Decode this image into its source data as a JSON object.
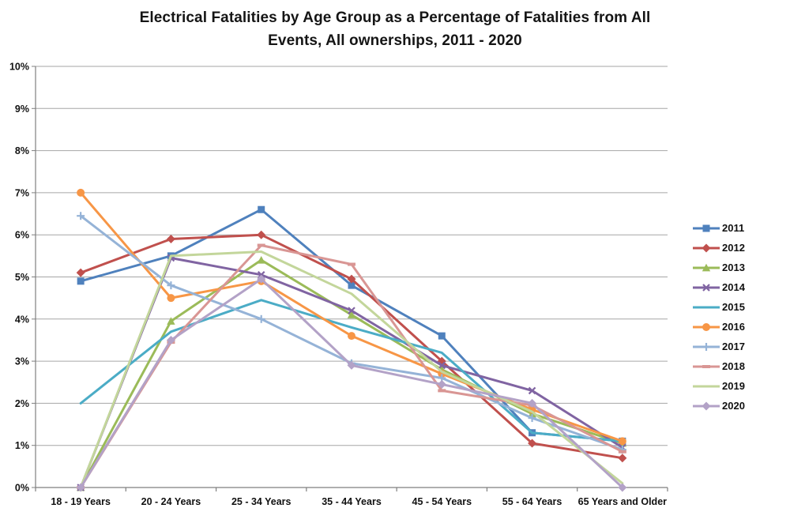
{
  "title": {
    "line1": "Electrical Fatalities by Age Group as a Percentage of Fatalities from All",
    "line2": "Events, All ownerships, 2011 - 2020"
  },
  "chart_data": {
    "type": "line",
    "title": "Electrical Fatalities by Age Group as a Percentage of Fatalities from All Events, All ownerships, 2011 - 2020",
    "categories": [
      "18 - 19 Years",
      "20 - 24 Years",
      "25 - 34 Years",
      "35 - 44 Years",
      "45 - 54 Years",
      "55 - 64 Years",
      "65 Years and Older"
    ],
    "xlabel": "",
    "ylabel": "",
    "y_axis": {
      "min": 0,
      "max": 10,
      "step": 1,
      "tick_labels": [
        "0%",
        "1%",
        "2%",
        "3%",
        "4%",
        "5%",
        "6%",
        "7%",
        "8%",
        "9%",
        "10%"
      ]
    },
    "grid": true,
    "legend_position": "right",
    "series": [
      {
        "name": "2011",
        "color": "#4F81BD",
        "marker": "square",
        "values": [
          4.9,
          5.5,
          6.6,
          4.8,
          3.6,
          1.3,
          1.1
        ]
      },
      {
        "name": "2012",
        "color": "#C0504D",
        "marker": "diamond",
        "values": [
          5.1,
          5.9,
          6.0,
          4.95,
          3.0,
          1.05,
          0.7
        ]
      },
      {
        "name": "2013",
        "color": "#9BBB59",
        "marker": "triangle",
        "values": [
          0.0,
          3.95,
          5.4,
          4.1,
          2.8,
          1.75,
          1.05
        ]
      },
      {
        "name": "2014",
        "color": "#8064A2",
        "marker": "x",
        "values": [
          0.0,
          5.45,
          5.05,
          4.2,
          2.9,
          2.3,
          0.95
        ]
      },
      {
        "name": "2015",
        "color": "#4BACC6",
        "marker": "none",
        "values": [
          2.0,
          3.7,
          4.45,
          3.8,
          3.2,
          1.3,
          1.1
        ]
      },
      {
        "name": "2016",
        "color": "#F79646",
        "marker": "circle",
        "values": [
          7.0,
          4.5,
          4.9,
          3.6,
          2.7,
          1.85,
          1.1
        ]
      },
      {
        "name": "2017",
        "color": "#95B3D7",
        "marker": "plus",
        "values": [
          6.45,
          4.8,
          4.0,
          2.95,
          2.6,
          1.65,
          0.9
        ]
      },
      {
        "name": "2018",
        "color": "#D99694",
        "marker": "dash",
        "values": [
          0.0,
          3.45,
          5.75,
          5.3,
          2.3,
          1.95,
          0.85
        ]
      },
      {
        "name": "2019",
        "color": "#C3D69B",
        "marker": "none",
        "values": [
          0.0,
          5.5,
          5.6,
          4.6,
          2.75,
          1.8,
          0.1
        ]
      },
      {
        "name": "2020",
        "color": "#B3A2C7",
        "marker": "diamond",
        "values": [
          0.0,
          3.5,
          4.95,
          2.9,
          2.45,
          2.0,
          0.0
        ]
      }
    ]
  }
}
